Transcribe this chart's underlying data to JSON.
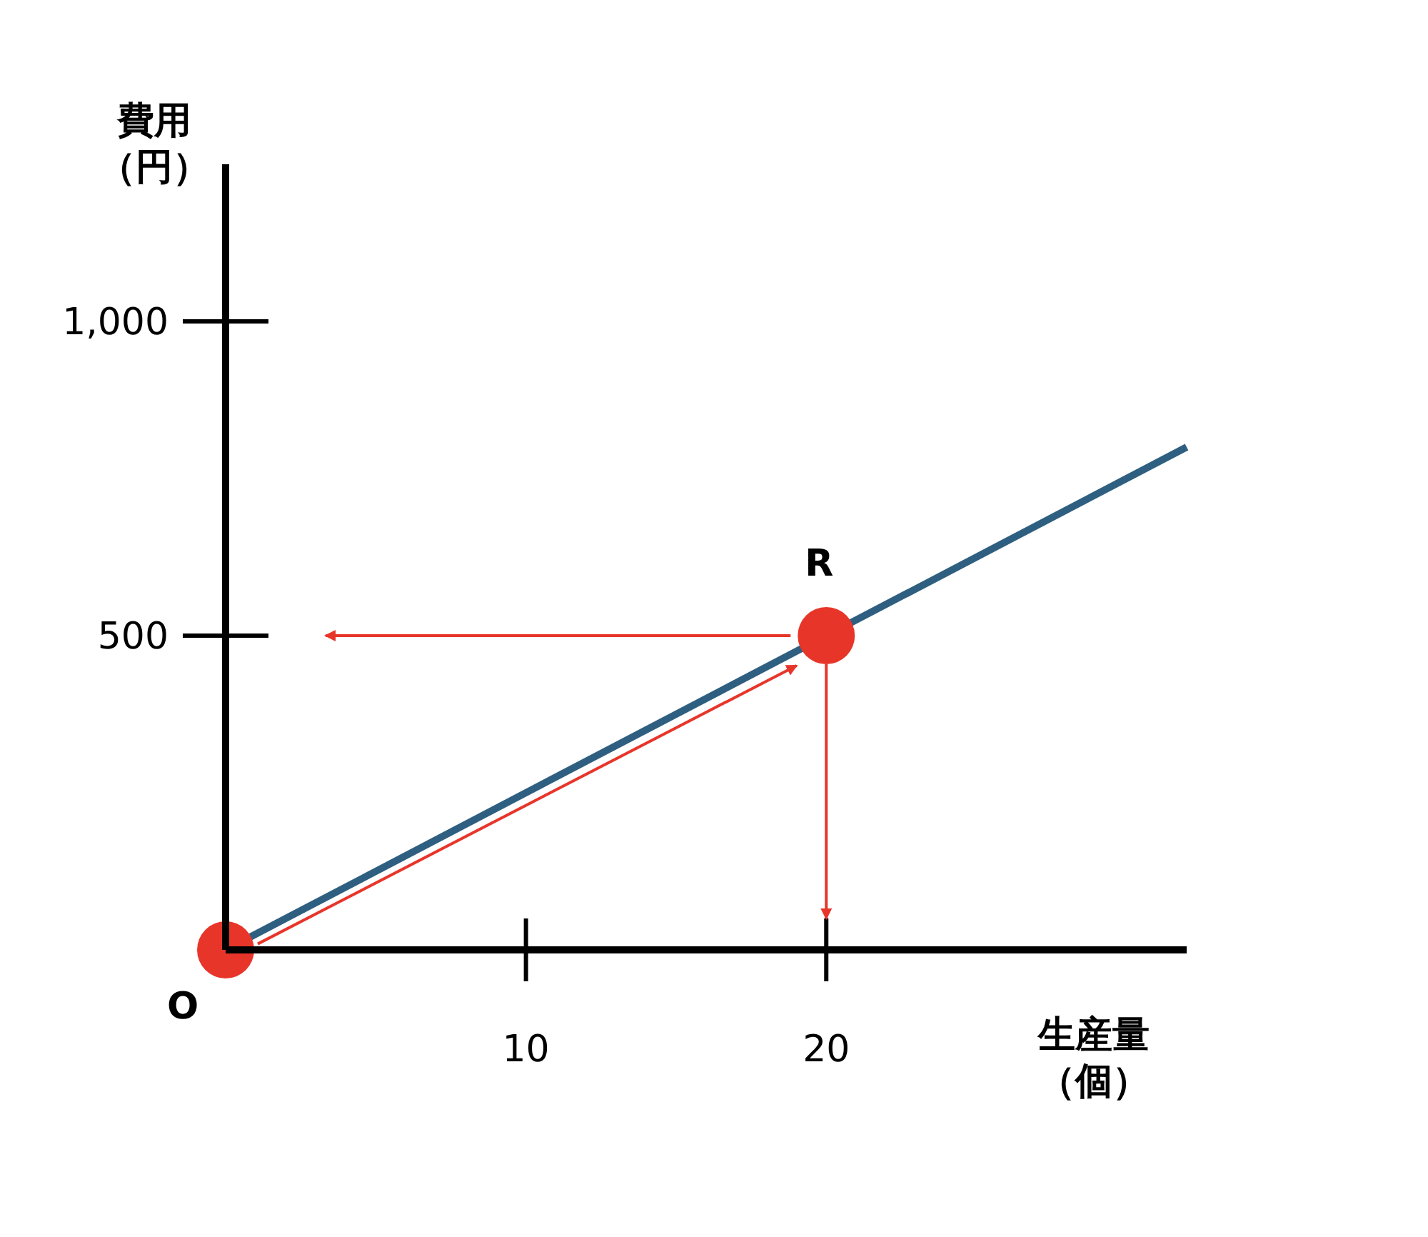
{
  "chart_data": {
    "type": "line",
    "xlabel": "生産量（個）",
    "ylabel": "費用（円）",
    "xlim": [
      0,
      32
    ],
    "ylim": [
      0,
      1250
    ],
    "xticks": [
      10,
      20
    ],
    "yticks": [
      500,
      {
        "value": 1000,
        "label": "1,000"
      }
    ],
    "grid": false,
    "legend": false,
    "series": [
      {
        "type": "line",
        "color": "#2f5f80",
        "x": [
          0,
          32
        ],
        "values": [
          0,
          800
        ],
        "marker": "none"
      },
      {
        "type": "scatter",
        "color": "#e8352a",
        "x": [
          0,
          20
        ],
        "values": [
          0,
          500
        ],
        "marker": "circle"
      }
    ],
    "annotations": [
      {
        "text": "O",
        "x": 0,
        "y": 0
      },
      {
        "text": "R",
        "x": 20,
        "y": 500
      }
    ]
  }
}
